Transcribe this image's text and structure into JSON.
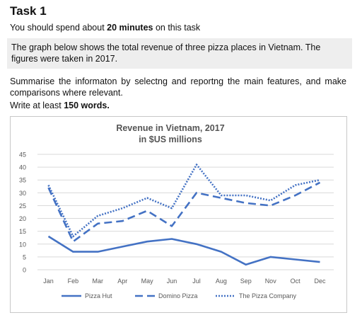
{
  "task": {
    "title": "Task 1",
    "time_prefix": "You should spend about ",
    "time_bold": "20 minutes",
    "time_suffix": " on this task",
    "prompt": "The graph below shows the total revenue of three pizza places in Vietnam. The figures were taken in 2017.",
    "summary": "Summarise the informaton by selectng and reportng the main features, and make comparisons where relevant.",
    "write_prefix": "Write at least ",
    "write_bold": "150 words."
  },
  "chart_data": {
    "type": "line",
    "title_line1": "Revenue in Vietnam, 2017",
    "title_line2": "in $US millions",
    "xlabel": "",
    "ylabel": "",
    "ylim": [
      0,
      45
    ],
    "yticks": [
      0,
      5,
      10,
      15,
      20,
      25,
      30,
      35,
      40,
      45
    ],
    "grid": true,
    "legend_position": "bottom",
    "categories": [
      "Jan",
      "Feb",
      "Mar",
      "Apr",
      "May",
      "Jun",
      "Jul",
      "Aug",
      "Sep",
      "Nov",
      "Oct",
      "Dec"
    ],
    "series": [
      {
        "name": "Pizza Hut",
        "style": "solid",
        "color": "#4472c4",
        "values": [
          13,
          7,
          7,
          9,
          11,
          12,
          10,
          7,
          2,
          5,
          4,
          3
        ]
      },
      {
        "name": "Domino Pizza",
        "style": "dashed",
        "color": "#4472c4",
        "values": [
          32,
          11,
          18,
          19,
          23,
          17,
          30,
          28,
          26,
          25,
          29,
          34
        ]
      },
      {
        "name": "The Pizza Company",
        "style": "dotted",
        "color": "#4472c4",
        "values": [
          33,
          13,
          21,
          24,
          28,
          24,
          41,
          29,
          29,
          27,
          33,
          35
        ]
      }
    ]
  }
}
